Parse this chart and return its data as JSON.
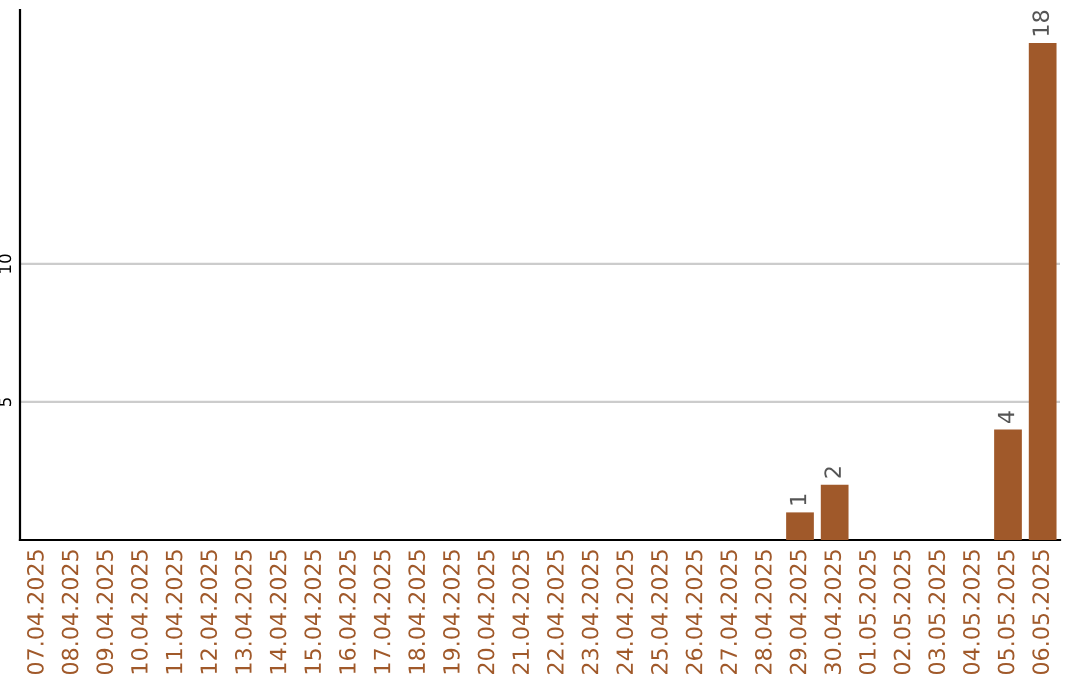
{
  "chart_data": {
    "type": "bar",
    "categories": [
      "07.04.2025",
      "08.04.2025",
      "09.04.2025",
      "10.04.2025",
      "11.04.2025",
      "12.04.2025",
      "13.04.2025",
      "14.04.2025",
      "15.04.2025",
      "16.04.2025",
      "17.04.2025",
      "18.04.2025",
      "19.04.2025",
      "20.04.2025",
      "21.04.2025",
      "22.04.2025",
      "23.04.2025",
      "24.04.2025",
      "25.04.2025",
      "26.04.2025",
      "27.04.2025",
      "28.04.2025",
      "29.04.2025",
      "30.04.2025",
      "01.05.2025",
      "02.05.2025",
      "03.05.2025",
      "04.05.2025",
      "05.05.2025",
      "06.05.2025"
    ],
    "values": [
      0,
      0,
      0,
      0,
      0,
      0,
      0,
      0,
      0,
      0,
      0,
      0,
      0,
      0,
      0,
      0,
      0,
      0,
      0,
      0,
      0,
      0,
      1,
      2,
      0,
      0,
      0,
      0,
      4,
      18
    ],
    "value_labels": [
      null,
      null,
      null,
      null,
      null,
      null,
      null,
      null,
      null,
      null,
      null,
      null,
      null,
      null,
      null,
      null,
      null,
      null,
      null,
      null,
      null,
      null,
      "1",
      "2",
      null,
      null,
      null,
      null,
      "4",
      "18"
    ],
    "color": "#a0592a",
    "ylim": [
      0,
      19.2
    ],
    "yticks": [
      5,
      10
    ],
    "grid": "y"
  }
}
